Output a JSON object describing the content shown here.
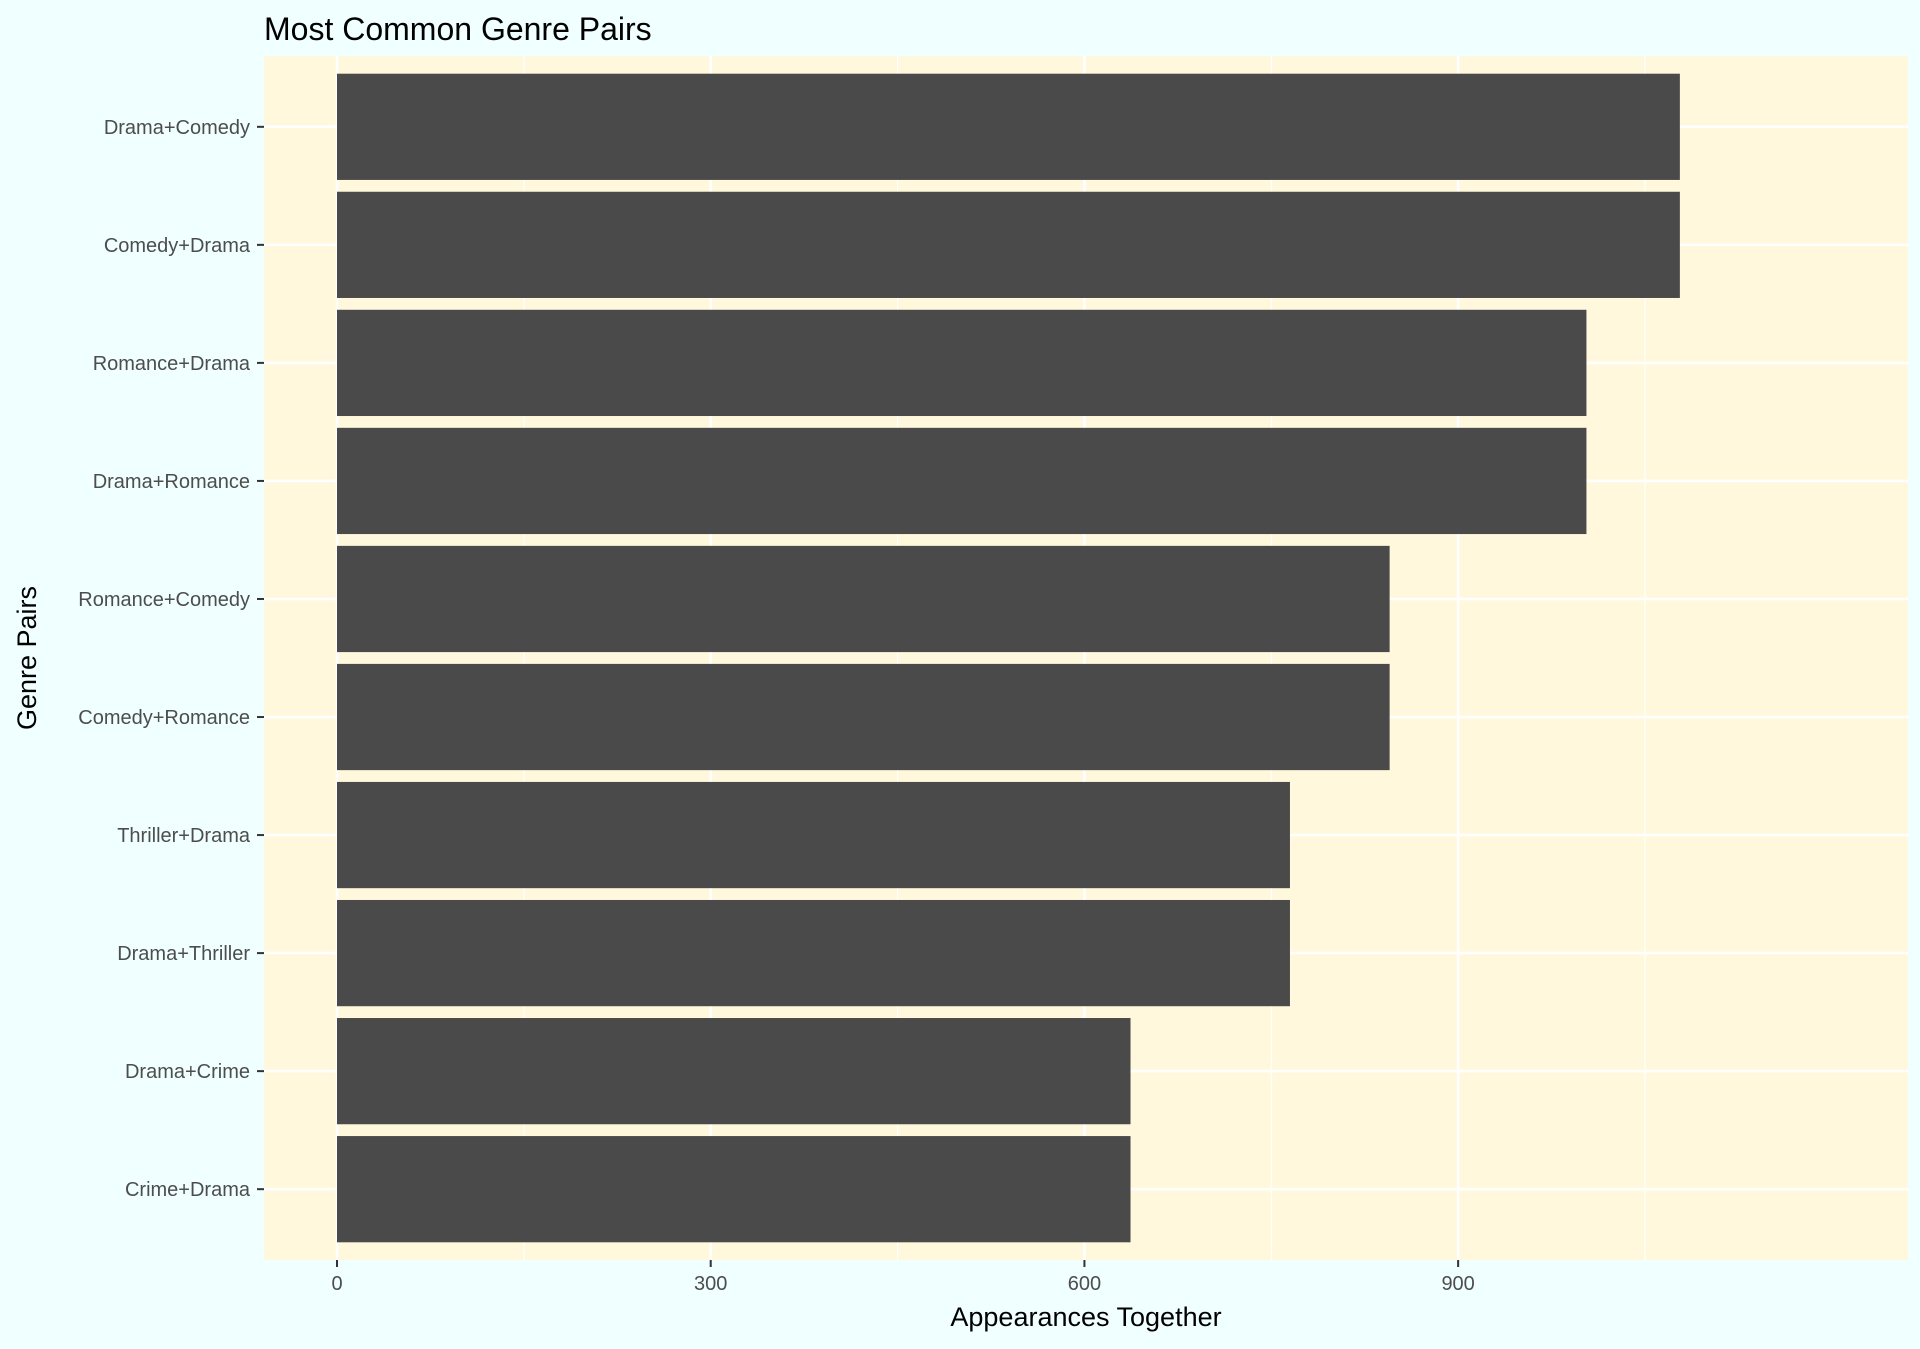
{
  "chart_data": {
    "type": "bar",
    "orientation": "horizontal",
    "title": "Most Common Genre Pairs",
    "xlabel": "Appearances Together",
    "ylabel": "Genre Pairs",
    "categories": [
      "Drama+Comedy",
      "Comedy+Drama",
      "Romance+Drama",
      "Drama+Romance",
      "Romance+Comedy",
      "Comedy+Romance",
      "Thriller+Drama",
      "Drama+Thriller",
      "Drama+Crime",
      "Crime+Drama"
    ],
    "values": [
      1078,
      1078,
      1003,
      1003,
      845,
      845,
      765,
      765,
      637,
      637
    ],
    "xlim": [
      -53,
      1132
    ],
    "xticks": [
      0,
      300,
      600,
      900
    ],
    "xtick_labels": [
      "0",
      "300",
      "600",
      "900"
    ],
    "grid": true,
    "legend": "none"
  },
  "colors": {
    "page_background": "#f0ffff",
    "panel_background": "#fff8dc",
    "grid": "#ffffff",
    "bar_fill": "#4a4a4a",
    "tick_text": "#4d4d4d",
    "title_text": "#000000"
  }
}
